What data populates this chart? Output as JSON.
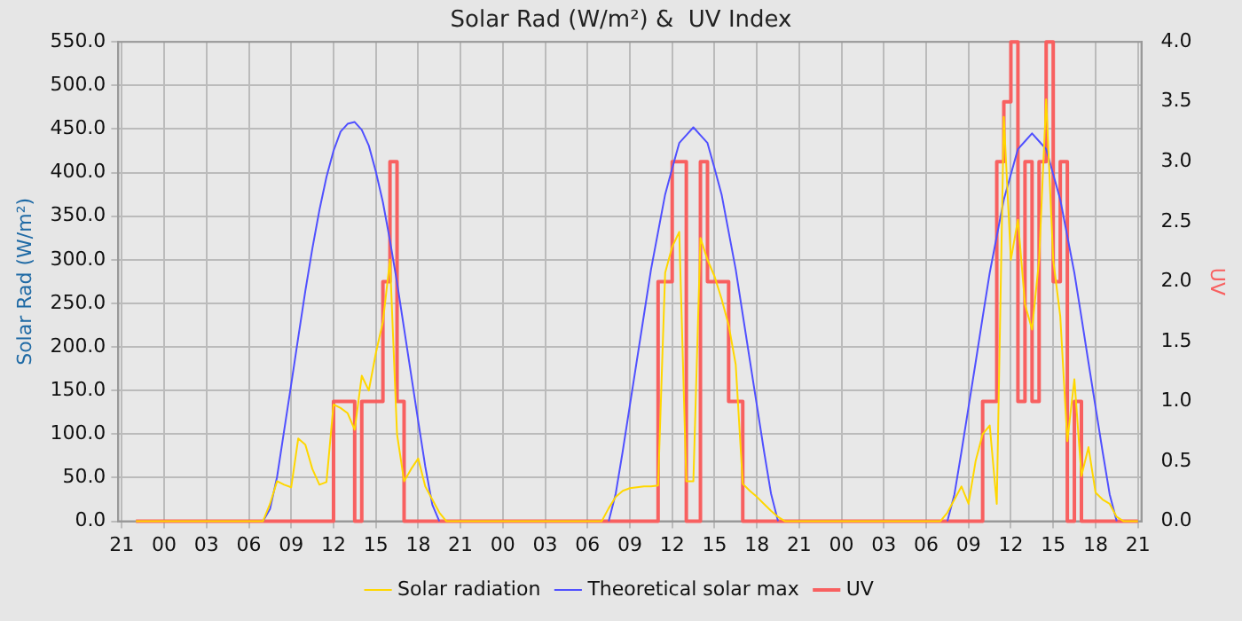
{
  "chart_data": {
    "type": "line",
    "title": "Solar Rad (W/m²) &  UV Index",
    "ylabel": "Solar Rad (W/m²)",
    "y2label": "UV",
    "categories": [
      "21",
      null,
      null,
      null,
      null,
      null,
      "00",
      null,
      null,
      null,
      null,
      null,
      "03",
      null,
      null,
      null,
      null,
      null,
      "06",
      null,
      null,
      null,
      null,
      null,
      "09",
      null,
      null,
      null,
      null,
      null,
      "12",
      null,
      null,
      null,
      null,
      null,
      "15",
      null,
      null,
      null,
      null,
      null,
      "18",
      null,
      null,
      null,
      null,
      null,
      "21",
      null,
      null,
      null,
      null,
      null,
      "00",
      null,
      null,
      null,
      null,
      null,
      "03",
      null,
      null,
      null,
      null,
      null,
      "06",
      null,
      null,
      null,
      null,
      null,
      "09",
      null,
      null,
      null,
      null,
      null,
      "12",
      null,
      null,
      null,
      null,
      null,
      "15",
      null,
      null,
      null,
      null,
      null,
      "18",
      null,
      null,
      null,
      null,
      null,
      "21",
      null,
      null,
      null,
      null,
      null,
      "00",
      null,
      null,
      null,
      null,
      null,
      "03",
      null,
      null,
      null,
      null,
      null,
      "06",
      null,
      null,
      null,
      null,
      null,
      "09",
      null,
      null,
      null,
      null,
      null,
      "12",
      null,
      null,
      null,
      null,
      null,
      "15",
      null,
      null,
      null,
      null,
      null,
      "18",
      null,
      null,
      null,
      null,
      null,
      "21"
    ],
    "ylim": [
      0,
      550
    ],
    "yticks": [
      {
        "value": 0,
        "label": "0.0"
      },
      {
        "value": 50,
        "label": "50.0"
      },
      {
        "value": 100,
        "label": "100.0"
      },
      {
        "value": 150,
        "label": "150.0"
      },
      {
        "value": 200,
        "label": "200.0"
      },
      {
        "value": 250,
        "label": "250.0"
      },
      {
        "value": 300,
        "label": "300.0"
      },
      {
        "value": 350,
        "label": "350.0"
      },
      {
        "value": 400,
        "label": "400.0"
      },
      {
        "value": 450,
        "label": "450.0"
      },
      {
        "value": 500,
        "label": "500.0"
      },
      {
        "value": 550,
        "label": "550.0"
      }
    ],
    "y2lim": [
      0,
      4
    ],
    "y2ticks": [
      {
        "value": 0,
        "label": "0.0"
      },
      {
        "value": 0.5,
        "label": "0.5"
      },
      {
        "value": 1,
        "label": "1.0"
      },
      {
        "value": 1.5,
        "label": "1.5"
      },
      {
        "value": 2,
        "label": "2.0"
      },
      {
        "value": 2.5,
        "label": "2.5"
      },
      {
        "value": 3,
        "label": "3.0"
      },
      {
        "value": 3.5,
        "label": "3.5"
      },
      {
        "value": 4,
        "label": "4.0"
      }
    ],
    "grid": true,
    "legend": "bottom",
    "line_style": "solid",
    "marker": "none",
    "series": [
      {
        "name": "Solar radiation",
        "type": "line",
        "color": "#ffd700",
        "values": [
          null,
          null,
          0,
          0,
          0,
          0,
          0,
          0,
          0,
          0,
          0,
          0,
          0,
          0,
          0,
          0,
          0,
          0,
          0,
          0,
          0,
          20,
          46,
          42,
          39,
          95,
          88,
          60,
          42,
          45,
          134,
          130,
          124,
          105,
          167,
          150,
          193,
          229,
          300,
          100,
          46,
          60,
          72,
          40,
          25,
          10,
          0,
          0,
          0,
          0,
          0,
          0,
          0,
          0,
          0,
          0,
          0,
          0,
          0,
          0,
          0,
          0,
          0,
          0,
          0,
          0,
          0,
          0,
          0,
          15,
          28,
          35,
          38,
          39,
          40,
          40,
          41,
          285,
          315,
          332,
          46,
          46,
          325,
          300,
          281,
          255,
          225,
          180,
          43,
          35,
          28,
          20,
          12,
          5,
          0,
          0,
          0,
          0,
          0,
          0,
          0,
          0,
          0,
          0,
          0,
          0,
          0,
          0,
          0,
          0,
          0,
          0,
          0,
          0,
          0,
          0,
          0,
          10,
          25,
          40,
          20,
          69,
          100,
          110,
          20,
          464,
          300,
          346,
          249,
          220,
          300,
          484,
          300,
          235,
          92,
          163,
          52,
          85,
          33,
          25,
          20,
          5,
          0,
          0,
          0
        ]
      },
      {
        "name": "Theoretical solar max",
        "type": "line",
        "color": "#5050ff",
        "values": [
          null,
          null,
          null,
          null,
          null,
          null,
          null,
          null,
          null,
          null,
          null,
          null,
          null,
          null,
          null,
          null,
          null,
          null,
          null,
          null,
          0,
          14,
          51,
          104,
          157,
          211,
          264,
          313,
          357,
          395,
          425,
          447,
          456,
          458,
          449,
          431,
          401,
          366,
          322,
          274,
          221,
          168,
          115,
          63,
          19,
          0,
          null,
          null,
          null,
          null,
          null,
          null,
          null,
          null,
          null,
          null,
          null,
          null,
          null,
          null,
          null,
          null,
          null,
          null,
          null,
          null,
          null,
          null,
          null,
          0,
          32,
          81,
          133,
          185,
          237,
          289,
          332,
          375,
          405,
          434,
          443,
          452,
          443,
          434,
          405,
          375,
          332,
          289,
          237,
          185,
          133,
          81,
          32,
          0,
          null,
          null,
          null,
          null,
          null,
          null,
          null,
          null,
          null,
          null,
          null,
          null,
          null,
          null,
          null,
          null,
          null,
          null,
          null,
          null,
          null,
          null,
          null,
          0,
          31,
          80,
          131,
          182,
          234,
          285,
          327,
          369,
          398,
          427,
          436,
          445,
          436,
          427,
          398,
          369,
          327,
          285,
          234,
          182,
          131,
          80,
          31,
          0,
          null,
          null,
          null
        ]
      },
      {
        "name": "UV",
        "type": "step",
        "axis": "y2",
        "color": "#f86060",
        "values": [
          null,
          null,
          0,
          0,
          0,
          0,
          0,
          0,
          0,
          0,
          0,
          0,
          0,
          0,
          0,
          0,
          0,
          0,
          0,
          0,
          0,
          0,
          0,
          0,
          0,
          0,
          0,
          0,
          0,
          0,
          1,
          1,
          1,
          0,
          1,
          1,
          1,
          2,
          3,
          1,
          0,
          0,
          0,
          0,
          0,
          0,
          0,
          0,
          0,
          0,
          0,
          0,
          0,
          0,
          0,
          0,
          0,
          0,
          0,
          0,
          0,
          0,
          0,
          0,
          0,
          0,
          0,
          0,
          0,
          0,
          0,
          0,
          0,
          0,
          0,
          0,
          2,
          2,
          3,
          3,
          0,
          0,
          3,
          2,
          2,
          2,
          1,
          1,
          0,
          0,
          0,
          0,
          0,
          0,
          0,
          0,
          0,
          0,
          0,
          0,
          0,
          0,
          0,
          0,
          0,
          0,
          0,
          0,
          0,
          0,
          0,
          0,
          0,
          0,
          0,
          0,
          0,
          0,
          0,
          0,
          0,
          0,
          1,
          1,
          3,
          3.5,
          4,
          1,
          3,
          1,
          3,
          4,
          2,
          3,
          0,
          1,
          0,
          0,
          0,
          0,
          0,
          0,
          0,
          0,
          0
        ]
      }
    ]
  }
}
